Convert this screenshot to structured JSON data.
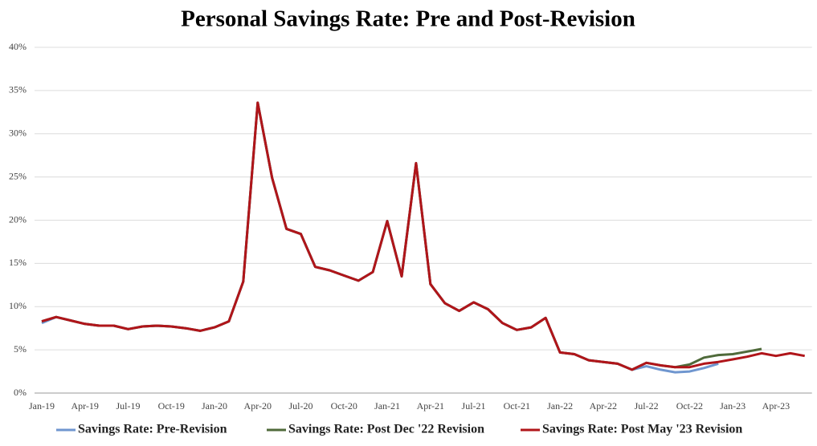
{
  "chart_data": {
    "type": "line",
    "title": "Personal Savings Rate: Pre and Post-Revision",
    "categories": [
      "Jan-19",
      null,
      null,
      "Apr-19",
      null,
      null,
      "Jul-19",
      null,
      null,
      "Oct-19",
      null,
      null,
      "Jan-20",
      null,
      null,
      "Apr-20",
      null,
      null,
      "Jul-20",
      null,
      null,
      "Oct-20",
      null,
      null,
      "Jan-21",
      null,
      null,
      "Apr-21",
      null,
      null,
      "Jul-21",
      null,
      null,
      "Oct-21",
      null,
      null,
      "Jan-22",
      null,
      null,
      "Apr-22",
      null,
      null,
      "Jul-22",
      null,
      null,
      "Oct-22",
      null,
      null,
      "Jan-23",
      null,
      null,
      "Apr-23",
      null,
      null
    ],
    "series": [
      {
        "name": "Savings Rate: Pre-Revision",
        "color": "#6f96cf",
        "values": [
          8.1,
          8.8,
          8.4,
          8.0,
          7.8,
          7.8,
          7.4,
          7.7,
          7.8,
          7.7,
          7.5,
          7.2,
          7.6,
          8.3,
          12.9,
          33.6,
          24.9,
          19.0,
          18.4,
          14.6,
          14.2,
          13.6,
          13.0,
          14.0,
          19.9,
          13.5,
          26.6,
          12.6,
          10.4,
          9.5,
          10.5,
          9.7,
          8.1,
          7.3,
          7.6,
          8.7,
          4.7,
          4.5,
          3.8,
          3.6,
          3.4,
          2.7,
          3.1,
          2.7,
          2.4,
          2.5,
          2.9,
          3.4,
          null,
          null,
          null,
          null,
          null,
          null
        ]
      },
      {
        "name": "Savings Rate: Post Dec '22 Revision",
        "color": "#4f6a3a",
        "values": [
          8.3,
          8.8,
          8.4,
          8.0,
          7.8,
          7.8,
          7.4,
          7.7,
          7.8,
          7.7,
          7.5,
          7.2,
          7.6,
          8.3,
          12.9,
          33.6,
          24.9,
          19.0,
          18.4,
          14.6,
          14.2,
          13.6,
          13.0,
          14.0,
          19.9,
          13.5,
          26.6,
          12.6,
          10.4,
          9.5,
          10.5,
          9.7,
          8.1,
          7.3,
          7.6,
          8.7,
          4.7,
          4.5,
          3.8,
          3.6,
          3.4,
          2.7,
          3.5,
          3.2,
          3.0,
          3.3,
          4.1,
          4.4,
          4.5,
          4.8,
          5.1,
          null,
          null,
          null
        ]
      },
      {
        "name": "Savings Rate: Post May '23 Revision",
        "color": "#b0151a",
        "values": [
          8.3,
          8.8,
          8.4,
          8.0,
          7.8,
          7.8,
          7.4,
          7.7,
          7.8,
          7.7,
          7.5,
          7.2,
          7.6,
          8.3,
          12.9,
          33.6,
          24.9,
          19.0,
          18.4,
          14.6,
          14.2,
          13.6,
          13.0,
          14.0,
          19.9,
          13.5,
          26.6,
          12.6,
          10.4,
          9.5,
          10.5,
          9.7,
          8.1,
          7.3,
          7.6,
          8.7,
          4.7,
          4.5,
          3.8,
          3.6,
          3.4,
          2.7,
          3.5,
          3.2,
          3.0,
          3.0,
          3.4,
          3.6,
          3.9,
          4.2,
          4.6,
          4.3,
          4.6,
          4.3
        ]
      }
    ],
    "ylim": [
      0,
      40
    ],
    "yticks": [
      {
        "value": 0,
        "label": "0%"
      },
      {
        "value": 5,
        "label": "5%"
      },
      {
        "value": 10,
        "label": "10%"
      },
      {
        "value": 15,
        "label": "15%"
      },
      {
        "value": 20,
        "label": "20%"
      },
      {
        "value": 25,
        "label": "25%"
      },
      {
        "value": 30,
        "label": "30%"
      },
      {
        "value": 35,
        "label": "35%"
      },
      {
        "value": 40,
        "label": "40%"
      }
    ],
    "grid": true
  }
}
